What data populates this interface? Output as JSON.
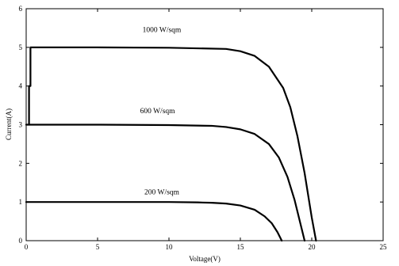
{
  "chart_data": {
    "type": "line",
    "title": "",
    "xlabel": "Voltage(V)",
    "ylabel": "Current(A)",
    "xlim": [
      0,
      25
    ],
    "ylim": [
      0,
      6
    ],
    "xticks": [
      0,
      5,
      10,
      15,
      20,
      25
    ],
    "yticks": [
      0,
      1,
      2,
      3,
      4,
      5,
      6
    ],
    "grid": false,
    "line_color": "#000000",
    "annotations": [
      {
        "text": "1000 W/sqm",
        "x": 9.5,
        "y": 5.4
      },
      {
        "text": "600 W/sqm",
        "x": 9.2,
        "y": 3.3
      },
      {
        "text": "200 W/sqm",
        "x": 9.5,
        "y": 1.2
      }
    ],
    "series": [
      {
        "label": "1000 W/sqm",
        "x": [
          0.2,
          0.2,
          0.3,
          0.3,
          5,
          10,
          14,
          15,
          16,
          17,
          18,
          18.5,
          19,
          19.5,
          20.0,
          20.3
        ],
        "y": [
          3.0,
          4.0,
          4.0,
          5.0,
          5.0,
          4.99,
          4.96,
          4.9,
          4.78,
          4.5,
          3.95,
          3.45,
          2.7,
          1.75,
          0.6,
          0.0
        ]
      },
      {
        "label": "600 W/sqm",
        "x": [
          0,
          5,
          10,
          13,
          14,
          15,
          16,
          17,
          17.7,
          18.3,
          18.8,
          19.2,
          19.5
        ],
        "y": [
          3.0,
          3.0,
          2.99,
          2.97,
          2.94,
          2.88,
          2.76,
          2.5,
          2.15,
          1.65,
          1.05,
          0.45,
          0.0
        ]
      },
      {
        "label": "200 W/sqm",
        "x": [
          0,
          5,
          10,
          12,
          13,
          14,
          15,
          16,
          16.7,
          17.2,
          17.6,
          17.9
        ],
        "y": [
          1.0,
          1.0,
          1.0,
          0.99,
          0.98,
          0.96,
          0.91,
          0.8,
          0.63,
          0.45,
          0.22,
          0.0
        ]
      }
    ]
  }
}
